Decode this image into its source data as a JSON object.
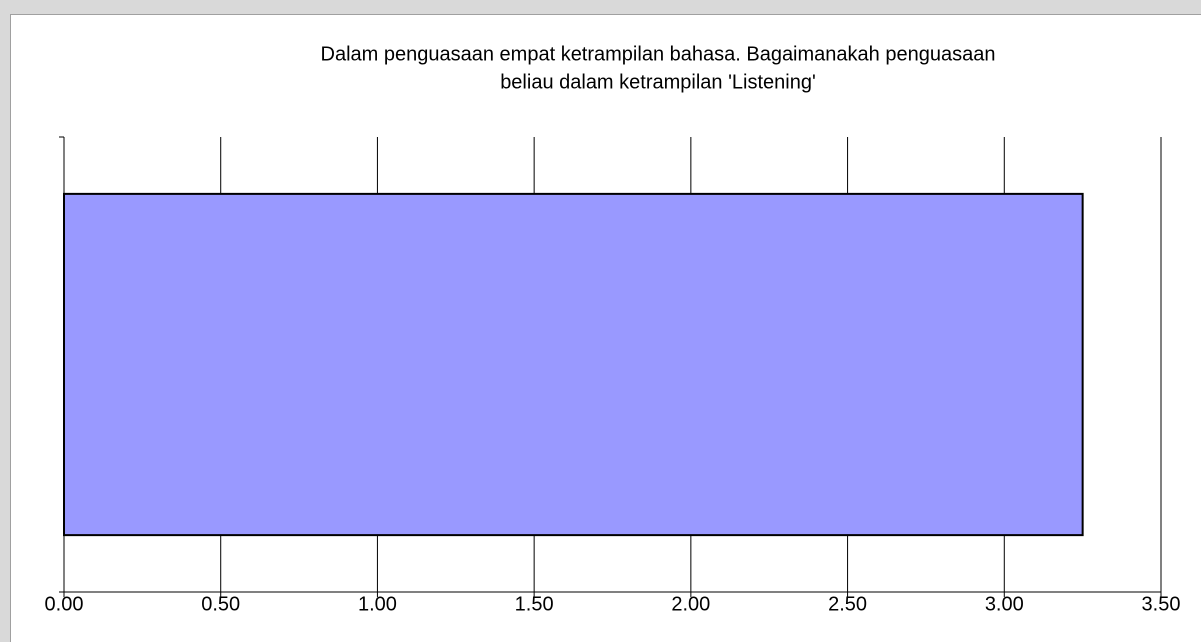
{
  "chart_data": {
    "type": "barh",
    "title": [
      "Dalam penguasaan empat ketrampilan bahasa. Bagaimanakah penguasaan",
      "beliau dalam ketrampilan 'Listening'"
    ],
    "categories": [
      null
    ],
    "values": [
      3.25
    ],
    "color": "#9999ff",
    "xlim": [
      0,
      3.5
    ],
    "xticks": [
      {
        "value": 0,
        "label": "0.00"
      },
      {
        "value": 0.5,
        "label": "0.50"
      },
      {
        "value": 1,
        "label": "1.00"
      },
      {
        "value": 1.5,
        "label": "1.50"
      },
      {
        "value": 2,
        "label": "2.00"
      },
      {
        "value": 2.5,
        "label": "2.50"
      },
      {
        "value": 3,
        "label": "3.00"
      },
      {
        "value": 3.5,
        "label": "3.50"
      }
    ],
    "grid": true
  }
}
